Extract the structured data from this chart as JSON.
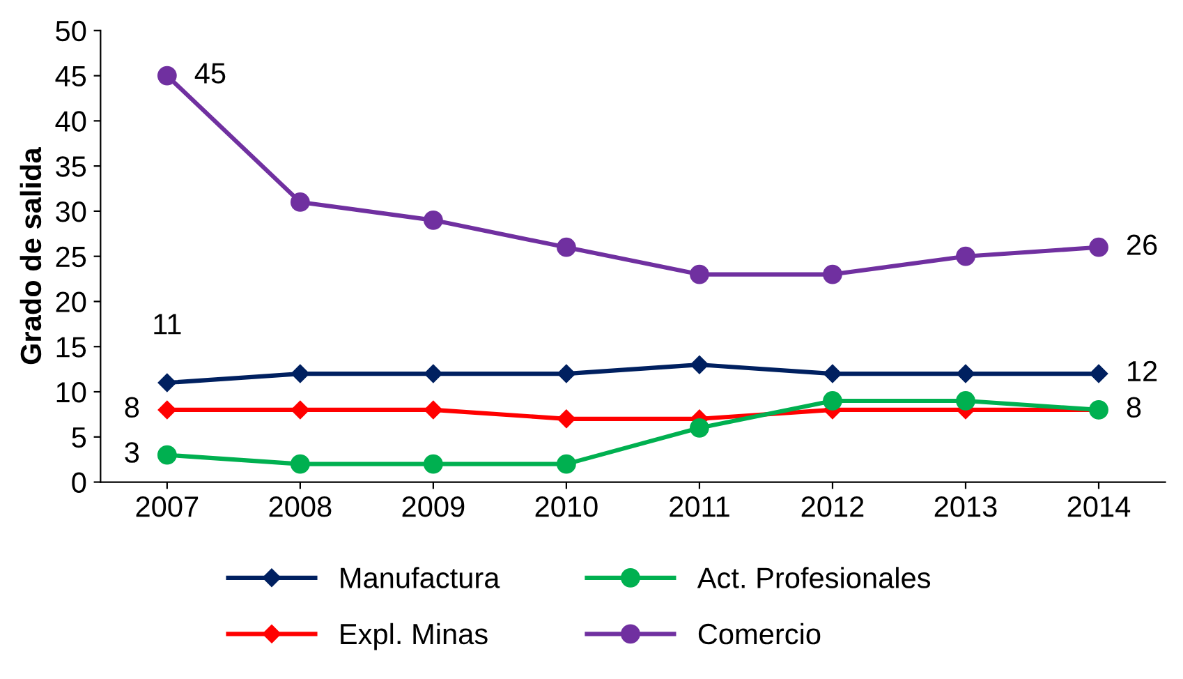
{
  "chart_data": {
    "type": "line",
    "ylabel": "Grado de salida",
    "categories": [
      "2007",
      "2008",
      "2009",
      "2010",
      "2011",
      "2012",
      "2013",
      "2014"
    ],
    "ylim": [
      0,
      50
    ],
    "yticks": [
      0,
      5,
      10,
      15,
      20,
      25,
      30,
      35,
      40,
      45,
      50
    ],
    "grid": false,
    "legend": "bottom",
    "series": [
      {
        "name": "Manufactura",
        "color": "#002060",
        "marker": "diamond",
        "values": [
          11,
          12,
          12,
          12,
          13,
          12,
          12,
          12
        ],
        "value_labels": [
          "11",
          null,
          null,
          null,
          null,
          null,
          null,
          "12"
        ]
      },
      {
        "name": "Expl. Minas",
        "color": "#ff0000",
        "marker": "diamond",
        "values": [
          8,
          8,
          8,
          7,
          7,
          8,
          8,
          8
        ],
        "value_labels": [
          "8",
          null,
          null,
          null,
          null,
          null,
          null,
          null
        ]
      },
      {
        "name": "Act. Profesionales",
        "color": "#00b050",
        "marker": "circle",
        "values": [
          3,
          2,
          2,
          2,
          6,
          9,
          9,
          8
        ],
        "value_labels": [
          "3",
          null,
          null,
          null,
          null,
          null,
          null,
          "8"
        ]
      },
      {
        "name": "Comercio",
        "color": "#7030a0",
        "marker": "circle",
        "values": [
          45,
          31,
          29,
          26,
          23,
          23,
          25,
          26
        ],
        "value_labels": [
          "45",
          null,
          null,
          null,
          null,
          null,
          null,
          "26"
        ]
      }
    ]
  }
}
